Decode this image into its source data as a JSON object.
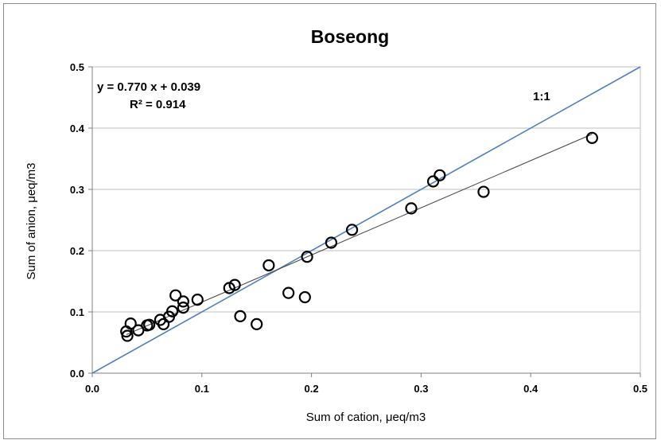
{
  "chart_data": {
    "type": "scatter",
    "title": "Boseong",
    "xlabel": "Sum of cation, μeq/m3",
    "ylabel": "Sum of anion, μeq/m3",
    "xlim": [
      0,
      0.5
    ],
    "ylim": [
      0,
      0.5
    ],
    "x_ticks": [
      "0.0",
      "0.1",
      "0.2",
      "0.3",
      "0.4",
      "0.5"
    ],
    "y_ticks": [
      "0.0",
      "0.1",
      "0.2",
      "0.3",
      "0.4",
      "0.5"
    ],
    "grid": "horizontal",
    "legend": "none",
    "annotations": {
      "equation": "y = 0.770 x + 0.039",
      "r_squared": "R² = 0.914",
      "one_to_one": "1:1"
    },
    "colors": {
      "one_to_one_line": "#4f81bd",
      "fit_line": "#404040",
      "marker": "#000000",
      "grid": "#bfbfbf"
    },
    "reference_line": {
      "slope": 1,
      "intercept": 0
    },
    "fit_line": {
      "slope": 0.77,
      "intercept": 0.039,
      "x_range": [
        0.031,
        0.456
      ]
    },
    "points": [
      {
        "x": 0.031,
        "y": 0.068
      },
      {
        "x": 0.032,
        "y": 0.061
      },
      {
        "x": 0.035,
        "y": 0.081
      },
      {
        "x": 0.042,
        "y": 0.07
      },
      {
        "x": 0.05,
        "y": 0.078
      },
      {
        "x": 0.052,
        "y": 0.079
      },
      {
        "x": 0.062,
        "y": 0.087
      },
      {
        "x": 0.065,
        "y": 0.08
      },
      {
        "x": 0.07,
        "y": 0.092
      },
      {
        "x": 0.073,
        "y": 0.101
      },
      {
        "x": 0.076,
        "y": 0.127
      },
      {
        "x": 0.083,
        "y": 0.117
      },
      {
        "x": 0.083,
        "y": 0.107
      },
      {
        "x": 0.096,
        "y": 0.12
      },
      {
        "x": 0.125,
        "y": 0.139
      },
      {
        "x": 0.13,
        "y": 0.144
      },
      {
        "x": 0.135,
        "y": 0.093
      },
      {
        "x": 0.15,
        "y": 0.08
      },
      {
        "x": 0.161,
        "y": 0.176
      },
      {
        "x": 0.179,
        "y": 0.131
      },
      {
        "x": 0.194,
        "y": 0.124
      },
      {
        "x": 0.196,
        "y": 0.19
      },
      {
        "x": 0.218,
        "y": 0.213
      },
      {
        "x": 0.237,
        "y": 0.234
      },
      {
        "x": 0.291,
        "y": 0.269
      },
      {
        "x": 0.311,
        "y": 0.313
      },
      {
        "x": 0.317,
        "y": 0.323
      },
      {
        "x": 0.357,
        "y": 0.296
      },
      {
        "x": 0.456,
        "y": 0.384
      }
    ]
  }
}
